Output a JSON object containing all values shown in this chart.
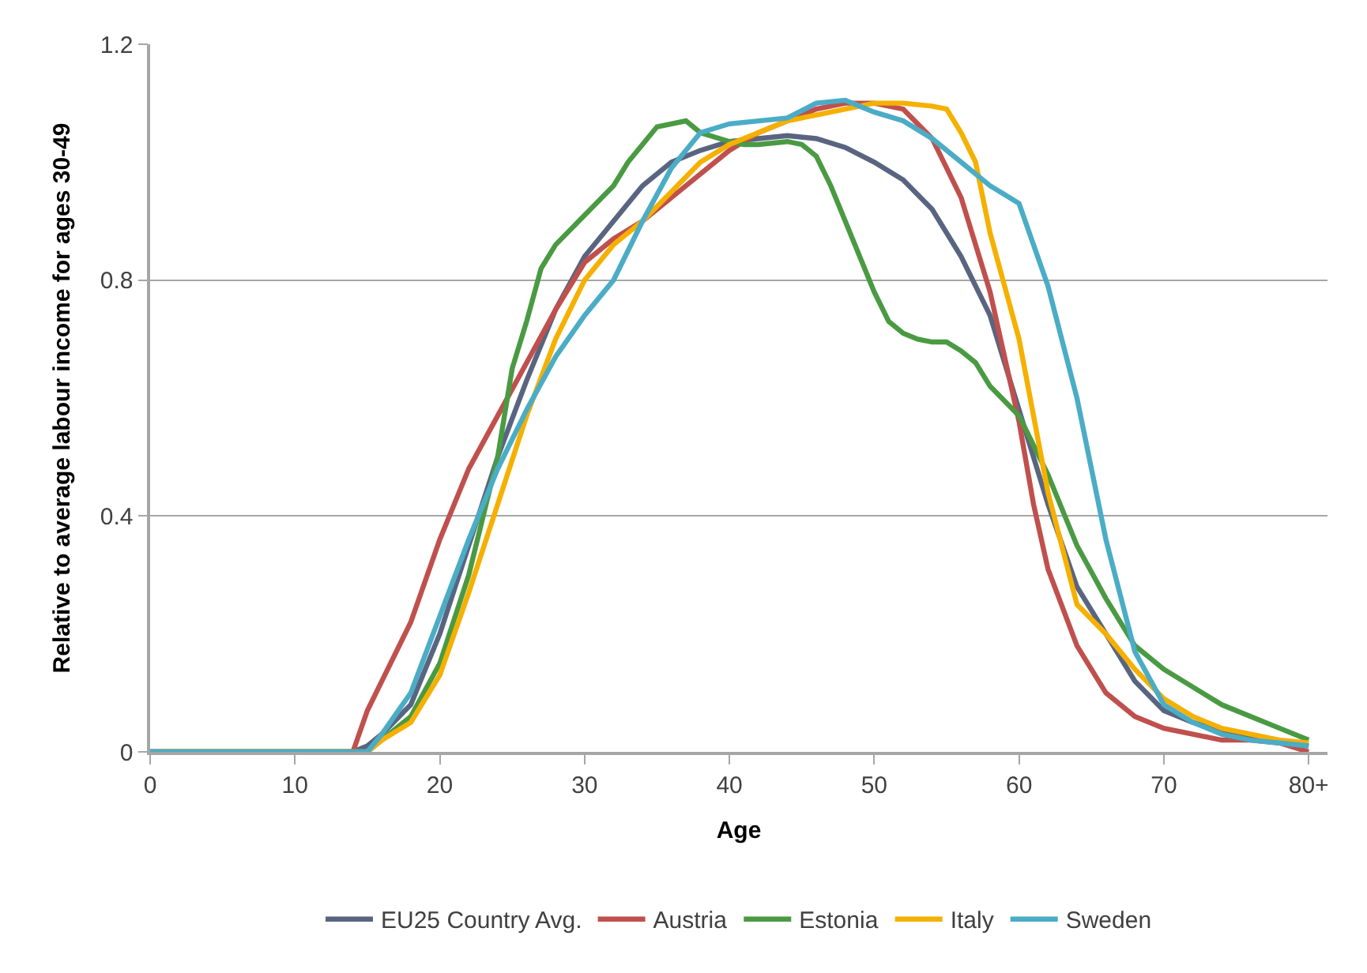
{
  "chart_data": {
    "type": "line",
    "xlabel": "Age",
    "ylabel": "Relative to average labour income for ages 30-49",
    "xlim": [
      0,
      81.3
    ],
    "xticks": [
      0,
      10,
      20,
      30,
      40,
      50,
      60,
      70,
      {
        "value": 80,
        "label": "80+"
      }
    ],
    "ylim": [
      0,
      1.2
    ],
    "yticks": [
      0,
      0.4,
      0.8,
      1.2
    ],
    "grid": "y",
    "legend": "bottom",
    "marker": "none",
    "line_style": "solid",
    "series": [
      {
        "name": "EU25 Country Avg.",
        "color": "#596580",
        "x": [
          0,
          14,
          15,
          16,
          18,
          20,
          22,
          24,
          26,
          28,
          30,
          32,
          34,
          36,
          38,
          40,
          42,
          44,
          46,
          48,
          50,
          52,
          54,
          56,
          58,
          60,
          62,
          64,
          66,
          68,
          70,
          72,
          74,
          76,
          78,
          80
        ],
        "values": [
          0,
          0,
          0.01,
          0.03,
          0.08,
          0.2,
          0.35,
          0.5,
          0.63,
          0.75,
          0.84,
          0.9,
          0.96,
          1.0,
          1.02,
          1.035,
          1.04,
          1.045,
          1.04,
          1.025,
          1.0,
          0.97,
          0.92,
          0.84,
          0.74,
          0.58,
          0.42,
          0.28,
          0.2,
          0.12,
          0.07,
          0.05,
          0.035,
          0.025,
          0.015,
          0.01
        ]
      },
      {
        "name": "Austria",
        "color": "#c0504d",
        "x": [
          0,
          14,
          15,
          16,
          18,
          20,
          22,
          24,
          26,
          28,
          30,
          32,
          34,
          36,
          38,
          40,
          42,
          44,
          46,
          48,
          50,
          52,
          54,
          56,
          58,
          60,
          61,
          62,
          64,
          66,
          68,
          70,
          72,
          74,
          76,
          78,
          80
        ],
        "values": [
          0,
          0,
          0.07,
          0.12,
          0.22,
          0.36,
          0.48,
          0.57,
          0.66,
          0.75,
          0.83,
          0.87,
          0.9,
          0.94,
          0.98,
          1.02,
          1.05,
          1.07,
          1.09,
          1.1,
          1.1,
          1.09,
          1.04,
          0.94,
          0.78,
          0.56,
          0.42,
          0.31,
          0.18,
          0.1,
          0.06,
          0.04,
          0.03,
          0.02,
          0.02,
          0.015,
          0
        ]
      },
      {
        "name": "Estonia",
        "color": "#4a9a43",
        "x": [
          0,
          15,
          16,
          18,
          20,
          22,
          24,
          25,
          26,
          27,
          28,
          30,
          32,
          33,
          34,
          35,
          37,
          38,
          40,
          41,
          42,
          44,
          45,
          46,
          47,
          48,
          50,
          51,
          52,
          53,
          54,
          55,
          56,
          57,
          58,
          60,
          62,
          64,
          66,
          68,
          70,
          72,
          74,
          76,
          78,
          80
        ],
        "values": [
          0,
          0,
          0.02,
          0.06,
          0.15,
          0.3,
          0.5,
          0.65,
          0.73,
          0.82,
          0.86,
          0.91,
          0.96,
          1.0,
          1.03,
          1.06,
          1.07,
          1.05,
          1.035,
          1.03,
          1.03,
          1.035,
          1.03,
          1.01,
          0.96,
          0.9,
          0.78,
          0.73,
          0.71,
          0.7,
          0.695,
          0.695,
          0.68,
          0.66,
          0.62,
          0.57,
          0.47,
          0.35,
          0.26,
          0.18,
          0.14,
          0.11,
          0.08,
          0.06,
          0.04,
          0.02
        ]
      },
      {
        "name": "Italy",
        "color": "#f5b000",
        "x": [
          0,
          15,
          16,
          18,
          20,
          22,
          24,
          26,
          28,
          30,
          32,
          34,
          36,
          38,
          40,
          42,
          44,
          46,
          48,
          50,
          52,
          54,
          55,
          56,
          57,
          58,
          60,
          62,
          64,
          66,
          68,
          70,
          72,
          74,
          76,
          78,
          80
        ],
        "values": [
          0,
          0,
          0.02,
          0.05,
          0.13,
          0.27,
          0.42,
          0.57,
          0.7,
          0.8,
          0.86,
          0.9,
          0.95,
          1.0,
          1.03,
          1.05,
          1.07,
          1.08,
          1.09,
          1.1,
          1.1,
          1.095,
          1.09,
          1.05,
          1.0,
          0.88,
          0.7,
          0.44,
          0.25,
          0.2,
          0.14,
          0.09,
          0.06,
          0.04,
          0.03,
          0.02,
          0.015
        ]
      },
      {
        "name": "Sweden",
        "color": "#4bacc6",
        "x": [
          0,
          15,
          16,
          18,
          20,
          22,
          24,
          26,
          28,
          30,
          32,
          34,
          36,
          38,
          40,
          42,
          44,
          46,
          48,
          50,
          52,
          54,
          56,
          58,
          60,
          62,
          64,
          66,
          68,
          70,
          72,
          74,
          76,
          78,
          80
        ],
        "values": [
          0,
          0,
          0.03,
          0.1,
          0.23,
          0.36,
          0.48,
          0.58,
          0.67,
          0.74,
          0.8,
          0.9,
          0.99,
          1.05,
          1.065,
          1.07,
          1.075,
          1.1,
          1.105,
          1.085,
          1.07,
          1.04,
          1.0,
          0.96,
          0.93,
          0.79,
          0.6,
          0.36,
          0.17,
          0.08,
          0.05,
          0.03,
          0.02,
          0.015,
          0.01
        ]
      }
    ]
  }
}
